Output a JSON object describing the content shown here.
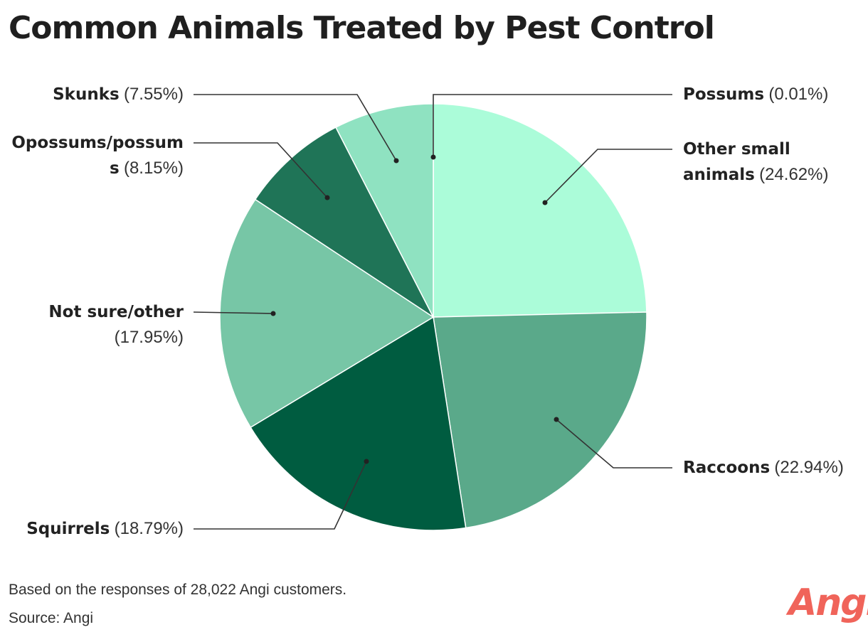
{
  "title": "Common Animals Treated by Pest Control",
  "chart_data": {
    "type": "pie",
    "title": "Common Animals Treated by Pest Control",
    "slices": [
      {
        "name": "Possums",
        "value": 0.01,
        "pct": "(0.01%)",
        "color": "#ade8cb"
      },
      {
        "name": "Other small animals",
        "value": 24.62,
        "pct": "(24.62%)",
        "color": "#abfcd9"
      },
      {
        "name": "Raccoons",
        "value": 22.94,
        "pct": "(22.94%)",
        "color": "#5aa98a"
      },
      {
        "name": "Squirrels",
        "value": 18.79,
        "pct": "(18.79%)",
        "color": "#005c40"
      },
      {
        "name": "Not sure/other",
        "value": 17.95,
        "pct": "(17.95%)",
        "color": "#77c6a6"
      },
      {
        "name": "Opossums/possums",
        "value": 8.15,
        "pct": "(8.15%)",
        "color": "#1f7457"
      },
      {
        "name": "Skunks",
        "value": 7.55,
        "pct": "(7.55%)",
        "color": "#8fe2c1"
      }
    ]
  },
  "labels": {
    "possums": {
      "name": "Possums",
      "pct": "(0.01%)"
    },
    "other_small": {
      "name_line1": "Other small",
      "name_line2": "animals",
      "pct": "(24.62%)"
    },
    "raccoons": {
      "name": "Raccoons",
      "pct": "(22.94%)"
    },
    "squirrels": {
      "name": "Squirrels",
      "pct": "(18.79%)"
    },
    "not_sure": {
      "name": "Not sure/other",
      "pct": "(17.95%)"
    },
    "opossums": {
      "name_line1": "Opossums/possum",
      "name_line2": "s",
      "pct": "(8.15%)"
    },
    "skunks": {
      "name": "Skunks",
      "pct": "(7.55%)"
    }
  },
  "footer": {
    "note": "Based on the responses of 28,022 Angi customers.",
    "source": "Source: Angi"
  },
  "logo": "Angi"
}
